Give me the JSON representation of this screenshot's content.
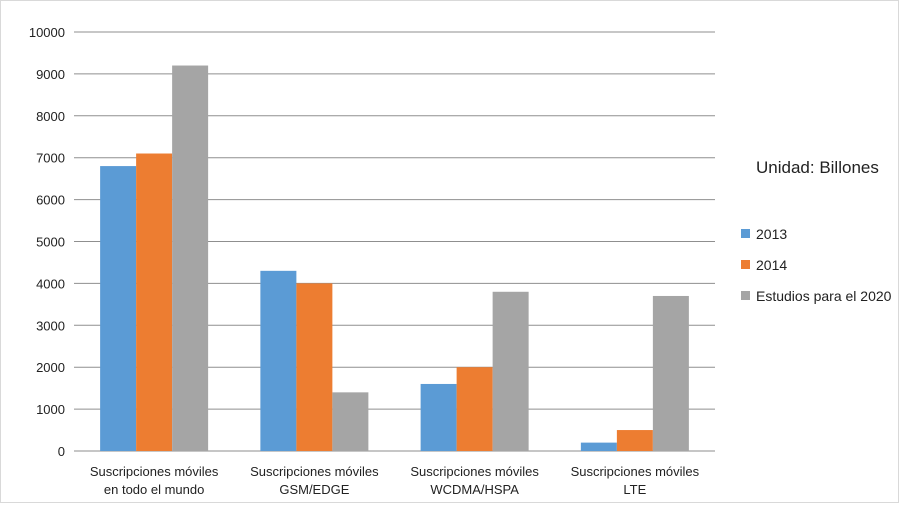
{
  "chart_data": {
    "type": "bar",
    "categories": [
      [
        "Suscripciones móviles",
        "en todo el mundo"
      ],
      [
        "Suscripciones móviles",
        "GSM/EDGE"
      ],
      [
        "Suscripciones móviles",
        "WCDMA/HSPA"
      ],
      [
        "Suscripciones móviles",
        "LTE"
      ]
    ],
    "series": [
      {
        "name": "2013",
        "color": "#5b9bd5",
        "values": [
          6800,
          4300,
          1600,
          200
        ]
      },
      {
        "name": "2014",
        "color": "#ed7d31",
        "values": [
          7100,
          4000,
          2000,
          500
        ]
      },
      {
        "name": "Estudios para el 2020",
        "color": "#a5a5a5",
        "values": [
          9200,
          1400,
          3800,
          3700
        ]
      }
    ],
    "ylim": [
      0,
      10000
    ],
    "yticks": [
      0,
      1000,
      2000,
      3000,
      4000,
      5000,
      6000,
      7000,
      8000,
      9000,
      10000
    ],
    "grid": true,
    "legend_position": "right",
    "unit_note": "Unidad: Billones"
  }
}
